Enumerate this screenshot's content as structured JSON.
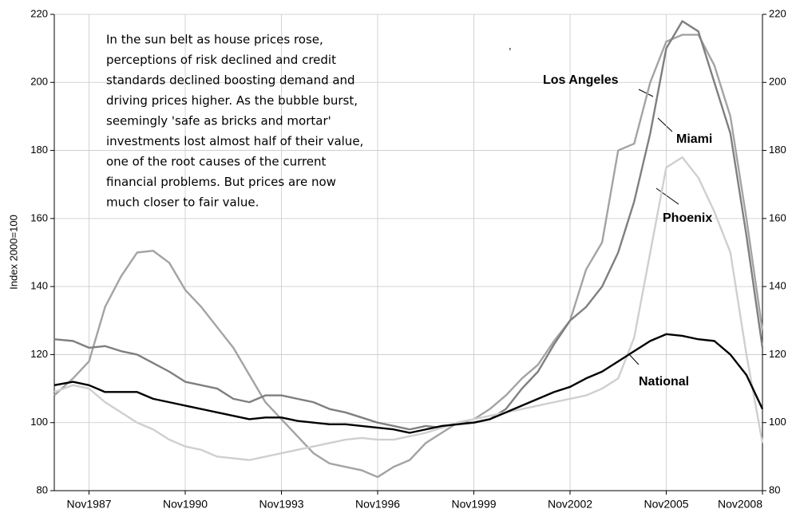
{
  "chart_data": {
    "type": "line",
    "y_label": "Index 2000=100",
    "annotation_lines": [
      "In the sun belt as house prices rose,",
      "perceptions of risk declined and credit",
      "standards declined boosting demand and",
      "driving prices higher. As the bubble burst,",
      "seemingly 'safe as bricks and mortar'",
      "investments lost almost half of their value,",
      "one of the root causes of the current",
      "financial problems. But prices are now",
      "much closer to fair value."
    ],
    "stray_mark": ",",
    "x": [
      "1986-10",
      "1987-05",
      "1987-11",
      "1988-05",
      "1988-11",
      "1989-05",
      "1989-11",
      "1990-05",
      "1990-11",
      "1991-05",
      "1991-11",
      "1992-05",
      "1992-11",
      "1993-05",
      "1993-11",
      "1994-05",
      "1994-11",
      "1995-05",
      "1995-11",
      "1996-05",
      "1996-11",
      "1997-05",
      "1997-11",
      "1998-05",
      "1998-11",
      "1999-05",
      "1999-11",
      "2000-05",
      "2000-11",
      "2001-05",
      "2001-11",
      "2002-05",
      "2002-11",
      "2003-05",
      "2003-11",
      "2004-05",
      "2004-11",
      "2005-05",
      "2005-11",
      "2006-05",
      "2006-11",
      "2007-05",
      "2007-11",
      "2008-05",
      "2008-11"
    ],
    "series": [
      {
        "name": "Los Angeles",
        "color": "#a3a3a3",
        "values": [
          108,
          113,
          118,
          134,
          143,
          150,
          150.5,
          147,
          139,
          134,
          128,
          122,
          114,
          106,
          101,
          96,
          91,
          88,
          87,
          86,
          84,
          87,
          89,
          94,
          97,
          100,
          101,
          104,
          108,
          113,
          117,
          124,
          130,
          145,
          153,
          180,
          182,
          200,
          212,
          214,
          214,
          205,
          190,
          160,
          127
        ]
      },
      {
        "name": "Miami",
        "color": "#7f7f7f",
        "values": [
          124.5,
          124,
          122,
          122.5,
          121,
          120,
          117.5,
          115,
          112,
          111,
          110,
          107,
          106,
          108,
          108,
          107,
          106,
          104,
          103,
          101.5,
          100,
          99,
          98,
          99,
          98.5,
          100,
          100,
          101,
          104,
          110,
          115,
          123,
          130,
          134,
          140,
          150,
          165,
          185,
          210,
          218,
          215,
          200,
          185,
          155,
          122
        ]
      },
      {
        "name": "Phoenix",
        "color": "#cfcfcf",
        "values": [
          109,
          111,
          110,
          106,
          103,
          100,
          98,
          95,
          93,
          92,
          90,
          89.5,
          89,
          90,
          91,
          92,
          93,
          94,
          95,
          95.5,
          95,
          95,
          96,
          97,
          98.5,
          100,
          101,
          102,
          103,
          104,
          105,
          106,
          107,
          108,
          110,
          113,
          125,
          150,
          175,
          178,
          172,
          162,
          150,
          120,
          94
        ]
      },
      {
        "name": "National",
        "color": "#000000",
        "values": [
          111,
          112,
          111,
          109,
          109,
          109,
          107,
          106,
          105,
          104,
          103,
          102,
          101,
          101.5,
          101.5,
          100.5,
          100,
          99.5,
          99.5,
          99,
          98.5,
          98,
          97,
          98,
          99,
          99.5,
          100,
          101,
          103,
          105,
          107,
          109,
          110.5,
          113,
          115,
          118,
          121,
          124,
          126,
          125.5,
          124.5,
          124,
          120,
          114,
          104
        ]
      }
    ],
    "xlim": [
      "1986-10",
      "2008-11"
    ],
    "xticks": [
      {
        "value": "1987-11",
        "label": "Nov1987"
      },
      {
        "value": "1990-11",
        "label": "Nov1990"
      },
      {
        "value": "1993-11",
        "label": "Nov1993"
      },
      {
        "value": "1996-11",
        "label": "Nov1996"
      },
      {
        "value": "1999-11",
        "label": "Nov1999"
      },
      {
        "value": "2002-11",
        "label": "Nov2002"
      },
      {
        "value": "2005-11",
        "label": "Nov2005"
      },
      {
        "value": "2008-11",
        "label": "Nov2008"
      }
    ],
    "ylim": [
      80,
      220
    ],
    "yticks": [
      80,
      100,
      120,
      140,
      160,
      180,
      200,
      220
    ],
    "y2lim": [
      80,
      220
    ],
    "y2ticks": [
      80,
      100,
      120,
      140,
      160,
      180,
      200,
      220
    ],
    "grid": true
  }
}
